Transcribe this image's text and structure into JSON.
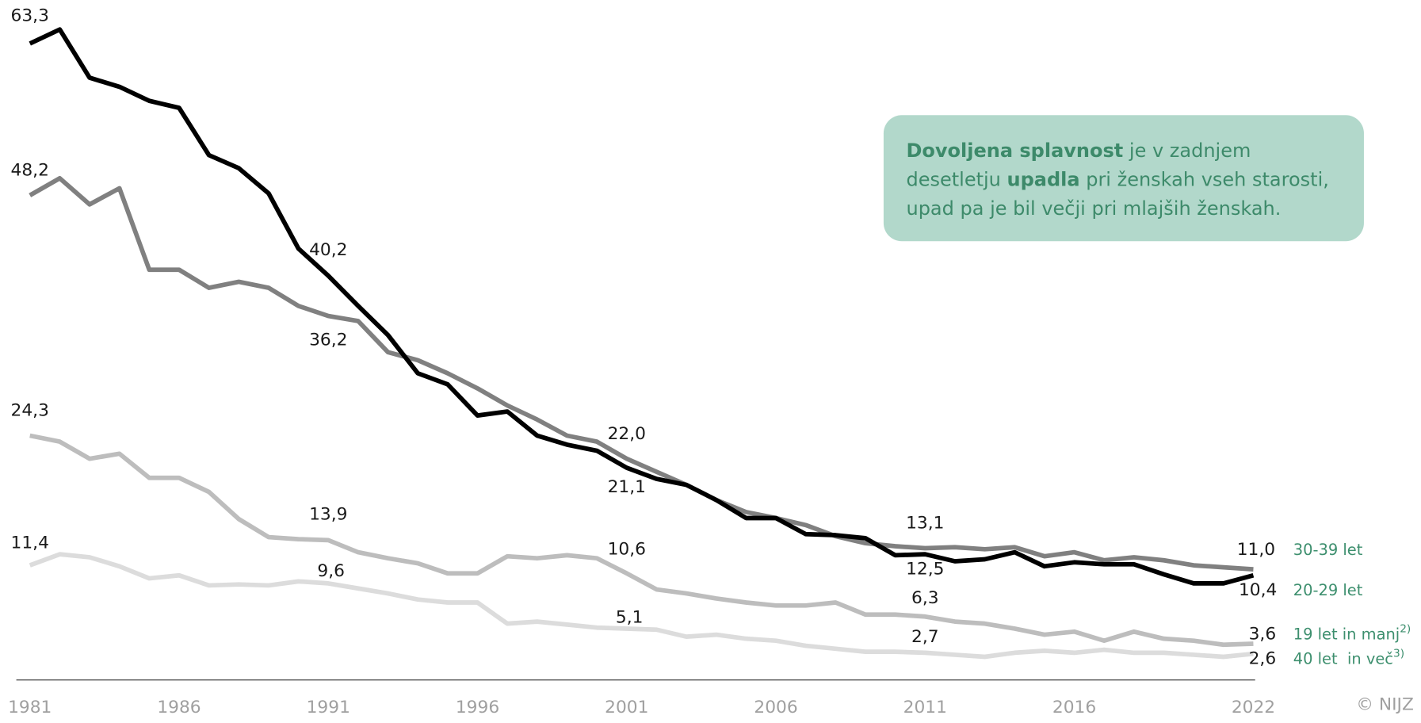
{
  "chart_data": {
    "type": "line",
    "x": [
      1981,
      1982,
      1983,
      1984,
      1985,
      1986,
      1987,
      1988,
      1989,
      1990,
      1991,
      1992,
      1993,
      1994,
      1995,
      1996,
      1997,
      1998,
      1999,
      2000,
      2001,
      2002,
      2003,
      2004,
      2005,
      2006,
      2007,
      2008,
      2009,
      2010,
      2011,
      2012,
      2013,
      2014,
      2015,
      2016,
      2017,
      2018,
      2019,
      2020,
      2021,
      2022
    ],
    "xticks": [
      1981,
      1986,
      1991,
      1996,
      2001,
      2006,
      2011,
      2016,
      2022
    ],
    "series": [
      {
        "name": "30-39 let",
        "color": "#808080",
        "values": [
          48.2,
          49.9,
          47.3,
          48.9,
          40.8,
          40.8,
          39.0,
          39.6,
          39.0,
          37.2,
          36.2,
          35.7,
          32.6,
          31.8,
          30.5,
          29.0,
          27.3,
          25.9,
          24.3,
          23.7,
          22.0,
          20.7,
          19.4,
          17.9,
          16.7,
          16.1,
          15.4,
          14.3,
          13.6,
          13.3,
          13.1,
          13.2,
          13.0,
          13.2,
          12.3,
          12.7,
          11.9,
          12.2,
          11.9,
          11.4,
          11.2,
          11.0
        ],
        "value_labels": [
          "48,2",
          null,
          null,
          null,
          null,
          null,
          null,
          null,
          null,
          null,
          "36,2",
          null,
          null,
          null,
          null,
          null,
          null,
          null,
          null,
          null,
          "22,0",
          null,
          null,
          null,
          null,
          null,
          null,
          null,
          null,
          null,
          "13,1",
          null,
          null,
          null,
          null,
          null,
          null,
          null,
          null,
          null,
          null,
          "11,0"
        ]
      },
      {
        "name": "20-29 let",
        "color": "#000000",
        "values": [
          63.3,
          64.7,
          59.9,
          59.0,
          57.6,
          56.9,
          52.2,
          50.9,
          48.4,
          42.9,
          40.2,
          37.2,
          34.3,
          30.5,
          29.4,
          26.3,
          26.7,
          24.3,
          23.4,
          22.8,
          21.1,
          20.0,
          19.4,
          17.9,
          16.1,
          16.1,
          14.5,
          14.4,
          14.1,
          12.4,
          12.5,
          11.8,
          12.0,
          12.7,
          11.3,
          11.7,
          11.5,
          11.5,
          10.5,
          9.6,
          9.6,
          10.4
        ],
        "value_labels": [
          "63,3",
          null,
          null,
          null,
          null,
          null,
          null,
          null,
          null,
          null,
          "40,2",
          null,
          null,
          null,
          null,
          null,
          null,
          null,
          null,
          null,
          "21,1",
          null,
          null,
          null,
          null,
          null,
          null,
          null,
          null,
          null,
          "12,5",
          null,
          null,
          null,
          null,
          null,
          null,
          null,
          null,
          null,
          null,
          "10,4"
        ]
      },
      {
        "name": "19 let in manj",
        "name_note": "2)",
        "color": "#bdbdbd",
        "values": [
          24.3,
          23.7,
          22.0,
          22.5,
          20.1,
          20.1,
          18.7,
          16.0,
          14.2,
          14.0,
          13.9,
          12.7,
          12.1,
          11.6,
          10.6,
          10.6,
          12.3,
          12.1,
          12.4,
          12.1,
          10.6,
          9.0,
          8.6,
          8.1,
          7.7,
          7.4,
          7.4,
          7.7,
          6.5,
          6.5,
          6.3,
          5.8,
          5.6,
          5.1,
          4.5,
          4.8,
          3.9,
          4.8,
          4.1,
          3.9,
          3.5,
          3.6
        ],
        "value_labels": [
          "24,3",
          null,
          null,
          null,
          null,
          null,
          null,
          null,
          null,
          null,
          "13,9",
          null,
          null,
          null,
          null,
          null,
          null,
          null,
          null,
          null,
          "10,6",
          null,
          null,
          null,
          null,
          null,
          null,
          null,
          null,
          null,
          "6,3",
          null,
          null,
          null,
          null,
          null,
          null,
          null,
          null,
          null,
          null,
          "3,6"
        ]
      },
      {
        "name": "40 let  in več",
        "name_note": "3)",
        "color": "#dcdcdc",
        "values": [
          11.4,
          12.5,
          12.2,
          11.3,
          10.1,
          10.4,
          9.4,
          9.5,
          9.4,
          9.8,
          9.6,
          9.1,
          8.6,
          8.0,
          7.7,
          7.7,
          5.6,
          5.8,
          5.5,
          5.2,
          5.1,
          5.0,
          4.3,
          4.5,
          4.1,
          3.9,
          3.4,
          3.1,
          2.8,
          2.8,
          2.7,
          2.5,
          2.3,
          2.7,
          2.9,
          2.7,
          3.0,
          2.7,
          2.7,
          2.5,
          2.3,
          2.6
        ],
        "value_labels": [
          "11,4",
          null,
          null,
          null,
          null,
          null,
          null,
          null,
          null,
          null,
          "9,6",
          null,
          null,
          null,
          null,
          null,
          null,
          null,
          null,
          null,
          "5,1",
          null,
          null,
          null,
          null,
          null,
          null,
          null,
          null,
          null,
          "2,7",
          null,
          null,
          null,
          null,
          null,
          null,
          null,
          null,
          null,
          null,
          "2,6"
        ]
      }
    ],
    "annotation": [
      [
        {
          "text": "Dovoljena splavnost",
          "bold": true
        },
        {
          "text": " je v zadnjem",
          "bold": false
        }
      ],
      [
        {
          "text": "desetletju ",
          "bold": false
        },
        {
          "text": "upadla",
          "bold": true
        },
        {
          "text": " pri ženskah vseh starosti,",
          "bold": false
        }
      ],
      [
        {
          "text": "upad pa je bil večji pri mlajših ženskah.",
          "bold": false
        }
      ]
    ],
    "source": "© NIJZ"
  }
}
